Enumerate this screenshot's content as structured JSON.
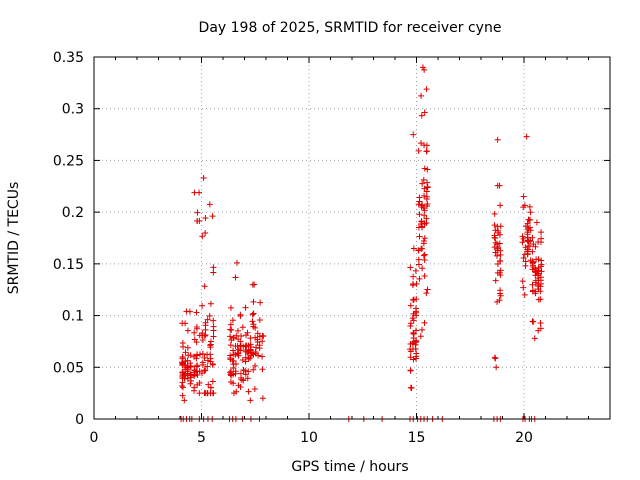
{
  "chart_data": {
    "type": "scatter",
    "title": "Day 198 of 2025, SRMTID for receiver cyne",
    "xlabel": "GPS time / hours",
    "ylabel": "SRMTID / TECUs",
    "xlim": [
      0,
      24
    ],
    "ylim": [
      0,
      0.35
    ],
    "xticks": [
      0,
      5,
      10,
      15,
      20
    ],
    "xtick_labels": [
      "0",
      "5",
      "10",
      "15",
      "20"
    ],
    "yticks": [
      0,
      0.05,
      0.1,
      0.15,
      0.2,
      0.25,
      0.3,
      0.35
    ],
    "ytick_labels": [
      "0",
      "0.05",
      "0.1",
      "0.15",
      "0.2",
      "0.25",
      "0.3",
      "0.35"
    ],
    "grid": true,
    "marker": "+",
    "color": "#e00000",
    "clusters": [
      {
        "x_range": [
          4.05,
          4.55
        ],
        "y_min": 0.018,
        "y_max": 0.104,
        "y_center": 0.05,
        "count": 55
      },
      {
        "x_range": [
          4.6,
          5.6
        ],
        "y_min": 0.025,
        "y_max": 0.233,
        "y_center": 0.06,
        "count": 90
      },
      {
        "x_range": [
          6.3,
          7.0
        ],
        "y_min": 0.025,
        "y_max": 0.151,
        "y_center": 0.06,
        "count": 60
      },
      {
        "x_range": [
          7.0,
          7.9
        ],
        "y_min": 0.018,
        "y_max": 0.13,
        "y_center": 0.07,
        "count": 60
      },
      {
        "x_range": [
          14.65,
          15.05
        ],
        "y_min": 0.03,
        "y_max": 0.275,
        "y_center": 0.09,
        "count": 45
      },
      {
        "x_range": [
          15.05,
          15.55
        ],
        "y_min": 0.08,
        "y_max": 0.34,
        "y_center": 0.2,
        "count": 65
      },
      {
        "x_range": [
          18.6,
          18.95
        ],
        "y_min": 0.05,
        "y_max": 0.27,
        "y_center": 0.16,
        "count": 40
      },
      {
        "x_range": [
          19.9,
          20.35
        ],
        "y_min": 0.12,
        "y_max": 0.273,
        "y_center": 0.18,
        "count": 40
      },
      {
        "x_range": [
          20.35,
          20.85
        ],
        "y_min": 0.078,
        "y_max": 0.19,
        "y_center": 0.14,
        "count": 55
      }
    ],
    "zero_points_x": [
      4.05,
      4.15,
      4.3,
      4.45,
      4.55,
      4.9,
      5.1,
      5.3,
      5.5,
      6.3,
      6.45,
      6.6,
      6.9,
      7.3,
      7.7,
      11.85,
      12.55,
      13.4,
      14.7,
      14.85,
      15.05,
      15.2,
      15.35,
      15.5,
      15.75,
      16.2,
      18.6,
      18.75,
      18.9,
      19.95,
      20.05,
      20.25,
      20.35,
      20.5
    ]
  }
}
